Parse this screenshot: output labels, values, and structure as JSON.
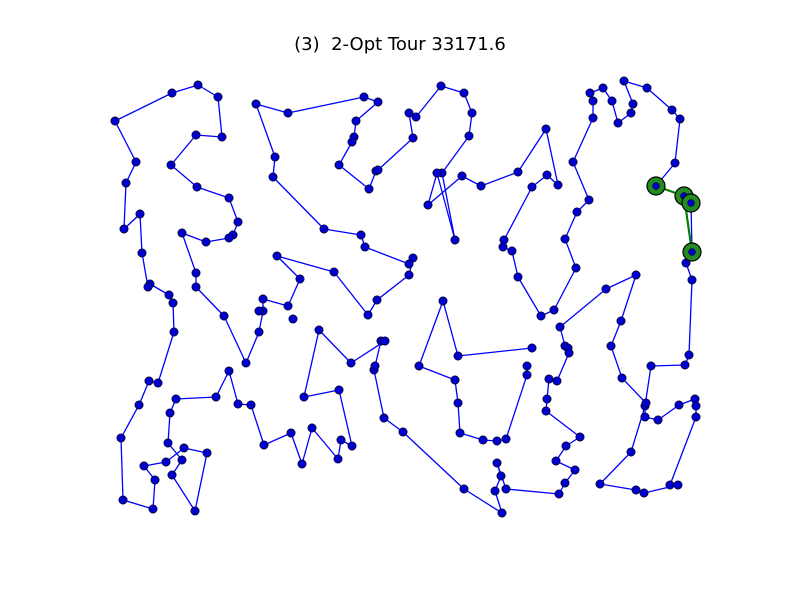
{
  "chart_data": {
    "type": "scatter",
    "title": "(3)  2-Opt Tour 33171.6",
    "xlabel": "",
    "ylabel": "",
    "axes_visible": false,
    "grid": false,
    "legend": "none",
    "tour_color": "#0000ff",
    "node_color": "#0000cc",
    "highlight_color": "#008000",
    "highlight_node_color": "#228b22",
    "tour": [
      [
        115,
        121
      ],
      [
        172,
        93
      ],
      [
        198,
        85
      ],
      [
        218,
        97
      ],
      [
        222,
        137
      ],
      [
        196,
        135
      ],
      [
        171,
        165
      ],
      [
        197,
        187
      ],
      [
        229,
        198
      ],
      [
        238,
        222
      ],
      [
        233,
        235
      ],
      [
        229,
        238
      ],
      [
        206,
        242
      ],
      [
        182,
        233
      ],
      [
        196,
        273
      ],
      [
        196,
        287
      ],
      [
        224,
        316
      ],
      [
        246,
        363
      ],
      [
        259,
        332
      ],
      [
        263,
        311
      ],
      [
        263,
        299
      ],
      [
        288,
        306
      ],
      [
        300,
        279
      ],
      [
        277,
        256
      ],
      [
        334,
        272
      ],
      [
        368,
        315
      ],
      [
        377,
        300
      ],
      [
        409,
        275
      ],
      [
        413,
        258
      ],
      [
        409,
        264
      ],
      [
        365,
        247
      ],
      [
        361,
        235
      ],
      [
        324,
        229
      ],
      [
        273,
        177
      ],
      [
        275,
        157
      ],
      [
        256,
        104
      ],
      [
        288,
        113
      ],
      [
        364,
        97
      ],
      [
        378,
        102
      ],
      [
        356,
        121
      ],
      [
        354,
        137
      ],
      [
        352,
        142
      ],
      [
        339,
        165
      ],
      [
        369,
        189
      ],
      [
        376,
        171
      ],
      [
        378,
        170
      ],
      [
        413,
        138
      ],
      [
        409,
        113
      ],
      [
        416,
        117
      ],
      [
        441,
        86
      ],
      [
        464,
        93
      ],
      [
        472,
        113
      ],
      [
        469,
        136
      ],
      [
        442,
        173
      ],
      [
        455,
        240
      ],
      [
        437,
        173
      ],
      [
        428,
        205
      ],
      [
        462,
        176
      ],
      [
        481,
        186
      ],
      [
        518,
        172
      ],
      [
        546,
        129
      ],
      [
        558,
        185
      ],
      [
        547,
        175
      ],
      [
        532,
        187
      ],
      [
        504,
        240
      ],
      [
        503,
        247
      ],
      [
        512,
        251
      ],
      [
        518,
        277
      ],
      [
        541,
        316
      ],
      [
        554,
        310
      ],
      [
        576,
        268
      ],
      [
        565,
        239
      ],
      [
        577,
        212
      ],
      [
        589,
        200
      ],
      [
        573,
        162
      ],
      [
        593,
        118
      ],
      [
        593,
        101
      ],
      [
        590,
        93
      ],
      [
        603,
        88
      ],
      [
        612,
        101
      ],
      [
        618,
        123
      ],
      [
        631,
        113
      ],
      [
        633,
        104
      ],
      [
        624,
        81
      ],
      [
        647,
        88
      ],
      [
        672,
        110
      ],
      [
        680,
        119
      ],
      [
        675,
        163
      ],
      [
        656,
        186
      ],
      [
        684,
        196
      ],
      [
        691,
        203
      ],
      [
        692,
        252
      ],
      [
        686,
        263
      ],
      [
        692,
        280
      ],
      [
        689,
        355
      ],
      [
        685,
        365
      ],
      [
        651,
        366
      ],
      [
        645,
        406
      ],
      [
        645,
        417
      ],
      [
        658,
        420
      ],
      [
        679,
        405
      ],
      [
        695,
        399
      ],
      [
        696,
        406
      ],
      [
        696,
        417
      ],
      [
        670,
        485
      ],
      [
        678,
        485
      ],
      [
        644,
        493
      ],
      [
        636,
        490
      ],
      [
        600,
        484
      ],
      [
        631,
        452
      ],
      [
        646,
        403
      ],
      [
        622,
        378
      ],
      [
        611,
        346
      ],
      [
        621,
        321
      ],
      [
        636,
        275
      ],
      [
        606,
        289
      ],
      [
        560,
        327
      ],
      [
        565,
        346
      ],
      [
        568,
        348
      ],
      [
        569,
        353
      ],
      [
        557,
        381
      ],
      [
        549,
        379
      ],
      [
        547,
        399
      ],
      [
        546,
        411
      ],
      [
        580,
        437
      ],
      [
        566,
        446
      ],
      [
        556,
        461
      ],
      [
        575,
        470
      ],
      [
        565,
        483
      ],
      [
        559,
        494
      ],
      [
        506,
        489
      ],
      [
        497,
        463
      ],
      [
        501,
        476
      ],
      [
        495,
        491
      ],
      [
        502,
        513
      ],
      [
        464,
        489
      ],
      [
        403,
        432
      ],
      [
        384,
        418
      ],
      [
        374,
        370
      ],
      [
        375,
        366
      ],
      [
        381,
        341
      ],
      [
        385,
        341
      ],
      [
        351,
        363
      ],
      [
        319,
        330
      ],
      [
        304,
        397
      ],
      [
        339,
        390
      ],
      [
        352,
        446
      ],
      [
        341,
        440
      ],
      [
        338,
        459
      ],
      [
        312,
        428
      ],
      [
        302,
        464
      ],
      [
        291,
        433
      ],
      [
        264,
        445
      ],
      [
        251,
        405
      ],
      [
        238,
        404
      ],
      [
        229,
        371
      ],
      [
        216,
        397
      ],
      [
        176,
        399
      ],
      [
        170,
        413
      ],
      [
        168,
        443
      ],
      [
        182,
        460
      ],
      [
        172,
        475
      ],
      [
        195,
        511
      ],
      [
        207,
        453
      ],
      [
        184,
        448
      ],
      [
        166,
        462
      ],
      [
        144,
        466
      ],
      [
        155,
        480
      ],
      [
        153,
        509
      ],
      [
        123,
        500
      ],
      [
        121,
        438
      ],
      [
        139,
        405
      ],
      [
        149,
        381
      ],
      [
        158,
        383
      ],
      [
        174,
        332
      ],
      [
        173,
        303
      ],
      [
        169,
        295
      ],
      [
        150,
        284
      ],
      [
        148,
        287
      ],
      [
        142,
        253
      ],
      [
        140,
        214
      ],
      [
        124,
        229
      ],
      [
        126,
        183
      ],
      [
        136,
        162
      ],
      [
        115,
        121
      ]
    ],
    "green_links": [
      [
        [
          656,
          186
        ],
        [
          684,
          196
        ]
      ],
      [
        [
          684,
          196
        ],
        [
          691,
          203
        ]
      ],
      [
        [
          684,
          196
        ],
        [
          692,
          252
        ]
      ]
    ],
    "extra_links": [
      [
        [
          443,
          301
        ],
        [
          458,
          356
        ]
      ],
      [
        [
          458,
          356
        ],
        [
          532,
          348
        ]
      ],
      [
        [
          527,
          366
        ],
        [
          527,
          375
        ]
      ],
      [
        [
          527,
          375
        ],
        [
          506,
          439
        ]
      ],
      [
        [
          506,
          439
        ],
        [
          497,
          441
        ]
      ],
      [
        [
          497,
          441
        ],
        [
          483,
          440
        ]
      ],
      [
        [
          483,
          440
        ],
        [
          460,
          433
        ]
      ],
      [
        [
          460,
          433
        ],
        [
          458,
          403
        ]
      ],
      [
        [
          458,
          403
        ],
        [
          455,
          380
        ]
      ],
      [
        [
          455,
          380
        ],
        [
          419,
          366
        ]
      ],
      [
        [
          419,
          366
        ],
        [
          443,
          301
        ]
      ]
    ],
    "extra_nodes": [
      [
        443,
        301
      ],
      [
        458,
        356
      ],
      [
        532,
        348
      ],
      [
        527,
        366
      ],
      [
        527,
        375
      ],
      [
        506,
        439
      ],
      [
        497,
        441
      ],
      [
        483,
        440
      ],
      [
        460,
        433
      ],
      [
        458,
        403
      ],
      [
        455,
        380
      ],
      [
        419,
        366
      ],
      [
        259,
        311
      ],
      [
        293,
        319
      ]
    ],
    "highlight_nodes": [
      [
        656,
        186
      ],
      [
        684,
        196
      ],
      [
        691,
        203
      ],
      [
        692,
        252
      ]
    ]
  }
}
